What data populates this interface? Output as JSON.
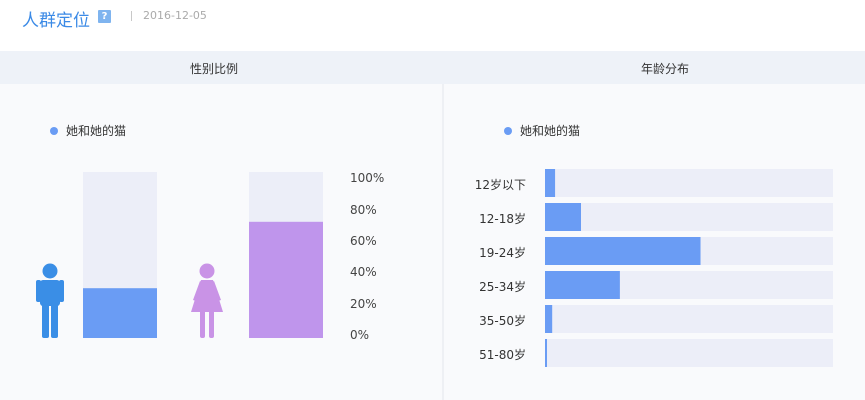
{
  "header": {
    "title": "人群定位",
    "help_icon": "?",
    "date": "2016-12-05"
  },
  "sections": {
    "gender": "性别比例",
    "age": "年龄分布"
  },
  "legend": {
    "series_name": "她和她的猫",
    "color": "#6a9cf4"
  },
  "chart_data": [
    {
      "type": "bar",
      "categories": [
        "male",
        "female"
      ],
      "series": [
        {
          "name": "她和她的猫",
          "values": [
            30,
            70
          ]
        }
      ],
      "ylim": [
        0,
        100
      ],
      "y_ticks": [
        "100%",
        "80%",
        "60%",
        "40%",
        "20%",
        "0%"
      ],
      "colors": {
        "male": "#6a9cf4",
        "female": "#bf95ec",
        "track": "#eceef8",
        "male_icon": "#3a8ee6",
        "female_icon": "#c993e6"
      }
    },
    {
      "type": "bar",
      "orientation": "horizontal",
      "categories": [
        "12岁以下",
        "12-18岁",
        "19-24岁",
        "25-34岁",
        "35-50岁",
        "51-80岁"
      ],
      "series": [
        {
          "name": "她和她的猫",
          "values": [
            3.5,
            12.5,
            54,
            26,
            2.5,
            0.5
          ]
        }
      ],
      "xlim": [
        0,
        100
      ],
      "colors": {
        "bar": "#6a9cf4",
        "track": "#eceef8"
      }
    }
  ]
}
